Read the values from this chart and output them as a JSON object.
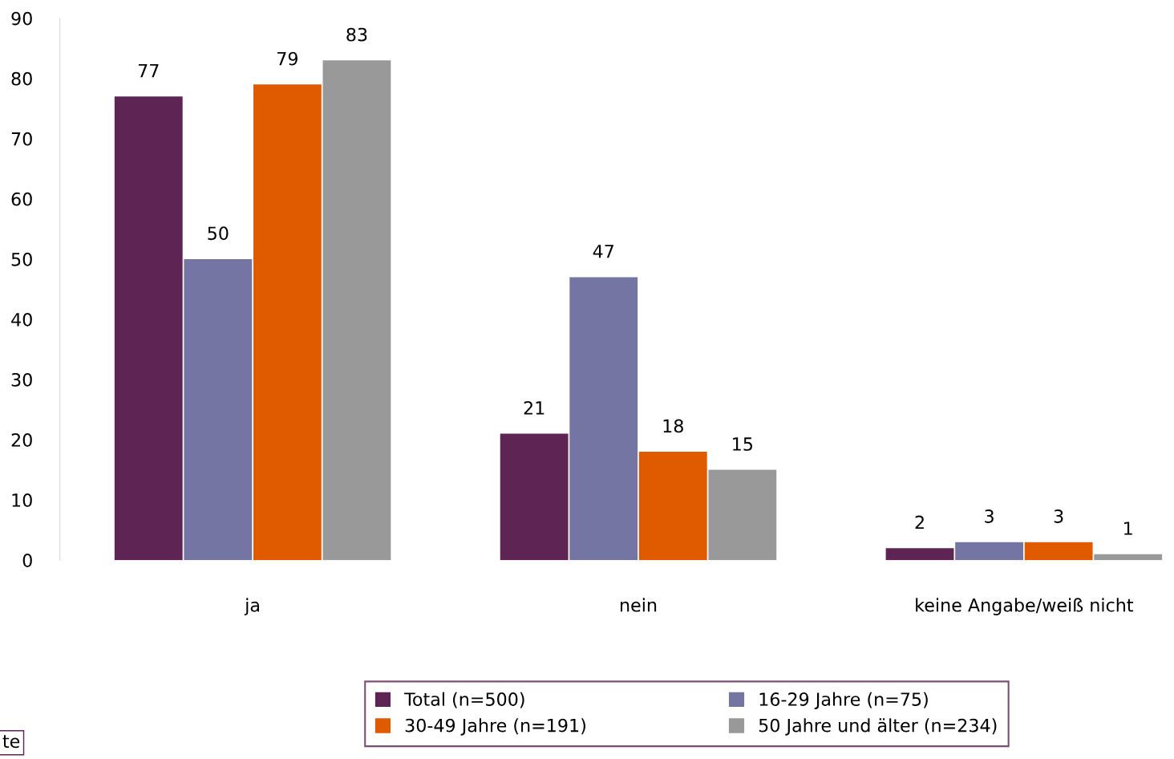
{
  "chart_data": {
    "type": "bar",
    "categories": [
      "ja",
      "nein",
      "keine Angabe/weiß nicht"
    ],
    "series": [
      {
        "name": "Total (n=500)",
        "color": "#5e2453",
        "values": [
          77,
          21,
          2
        ]
      },
      {
        "name": "16-29 Jahre (n=75)",
        "color": "#7475a3",
        "values": [
          50,
          47,
          3
        ]
      },
      {
        "name": "30-49 Jahre (n=191)",
        "color": "#e05a00",
        "values": [
          79,
          18,
          3
        ]
      },
      {
        "name": "50 Jahre und älter (n=234)",
        "color": "#999999",
        "values": [
          83,
          15,
          1
        ]
      }
    ],
    "ylim": [
      0,
      90
    ],
    "yticks": [
      0,
      10,
      20,
      30,
      40,
      50,
      60,
      70,
      80,
      90
    ],
    "data_labels": true,
    "grid": false,
    "legend": "bottom",
    "annotations": [
      "te"
    ]
  }
}
